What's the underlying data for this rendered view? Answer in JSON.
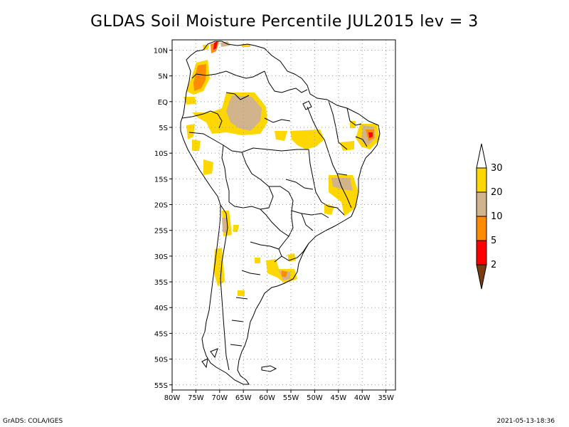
{
  "title": "GLDAS Soil Moisture Percentile JUL2015 lev = 3",
  "footer": {
    "left": "GrADS: COLA/IGES",
    "right": "2021-05-13-18:36"
  },
  "map": {
    "lon_range": [
      -80,
      -33
    ],
    "lat_range": [
      -56,
      12
    ],
    "lat_ticks": [
      {
        "value": 10,
        "label": "10N"
      },
      {
        "value": 5,
        "label": "5N"
      },
      {
        "value": 0,
        "label": "EQ"
      },
      {
        "value": -5,
        "label": "5S"
      },
      {
        "value": -10,
        "label": "10S"
      },
      {
        "value": -15,
        "label": "15S"
      },
      {
        "value": -20,
        "label": "20S"
      },
      {
        "value": -25,
        "label": "25S"
      },
      {
        "value": -30,
        "label": "30S"
      },
      {
        "value": -35,
        "label": "35S"
      },
      {
        "value": -40,
        "label": "40S"
      },
      {
        "value": -45,
        "label": "45S"
      },
      {
        "value": -50,
        "label": "50S"
      },
      {
        "value": -55,
        "label": "55S"
      }
    ],
    "lon_ticks": [
      {
        "value": -80,
        "label": "80W"
      },
      {
        "value": -75,
        "label": "75W"
      },
      {
        "value": -70,
        "label": "70W"
      },
      {
        "value": -65,
        "label": "65W"
      },
      {
        "value": -60,
        "label": "60W"
      },
      {
        "value": -55,
        "label": "55W"
      },
      {
        "value": -50,
        "label": "50W"
      },
      {
        "value": -45,
        "label": "45W"
      },
      {
        "value": -40,
        "label": "40W"
      },
      {
        "value": -35,
        "label": "35W"
      }
    ],
    "grid": true
  },
  "legend": {
    "bins": [
      {
        "color": "#7a3c10",
        "label": "2"
      },
      {
        "color": "#ff0000",
        "label": "5"
      },
      {
        "color": "#ff8c00",
        "label": "10"
      },
      {
        "color": "#d2b48c",
        "label": "20"
      },
      {
        "color": "#ffd700",
        "label": "30"
      },
      {
        "color": "#ffffff",
        "label": ""
      }
    ]
  },
  "chart_data": {
    "type": "heatmap",
    "title": "GLDAS Soil Moisture Percentile JUL2015 lev = 3",
    "variable": "Soil moisture percentile",
    "period": "JUL2015",
    "level": 3,
    "color_scale_labels": [
      "2",
      "5",
      "10",
      "20",
      "30"
    ],
    "colors": {
      "below_2": "#7a3c10",
      "2_to_5": "#ff0000",
      "5_to_10": "#ff8c00",
      "10_to_20": "#d2b48c",
      "20_to_30": "#ffd700"
    },
    "regions": [
      {
        "lon": -75.5,
        "lat": 4,
        "value": 12
      },
      {
        "lon": -74.5,
        "lat": 2.5,
        "value": 8
      },
      {
        "lon": -73,
        "lat": 11,
        "value": 4
      },
      {
        "lon": -69,
        "lat": 11.5,
        "value": 7
      },
      {
        "lon": -64,
        "lat": 10.5,
        "value": 12
      },
      {
        "lon": -64,
        "lat": -2.5,
        "value": 15
      },
      {
        "lon": -63,
        "lat": -5.5,
        "value": 22
      },
      {
        "lon": -58.5,
        "lat": -6.5,
        "value": 24
      },
      {
        "lon": -52,
        "lat": -7,
        "value": 25
      },
      {
        "lon": -37,
        "lat": -6,
        "value": 4
      },
      {
        "lon": -35.5,
        "lat": -7.5,
        "value": 8
      },
      {
        "lon": -43.5,
        "lat": -16.5,
        "value": 18
      },
      {
        "lon": -41,
        "lat": -20,
        "value": 22
      },
      {
        "lon": -69,
        "lat": -24,
        "value": 15
      },
      {
        "lon": -54,
        "lat": -34.5,
        "value": 8
      },
      {
        "lon": -52,
        "lat": -33,
        "value": 22
      },
      {
        "lon": -71,
        "lat": -33,
        "value": 25
      },
      {
        "lon": -64,
        "lat": -39,
        "value": 26
      }
    ]
  }
}
